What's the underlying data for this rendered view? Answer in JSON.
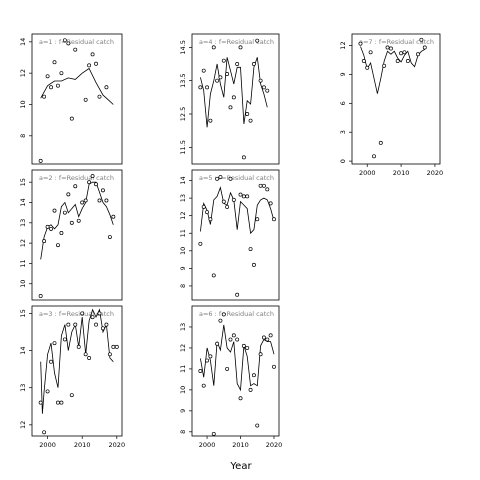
{
  "chart_data": {
    "type": "scatter",
    "xlabel": "Year",
    "x_ticks": [
      2000,
      2010,
      2020
    ],
    "xlim": [
      1995.5,
      2021.5
    ],
    "panels": [
      {
        "label": "a=1",
        "title": "a=1 : f=Residual catch",
        "ylim": [
          6.2,
          14.5
        ],
        "yticks": [
          8,
          10,
          12,
          14
        ],
        "points": [
          [
            1998,
            6.4
          ],
          [
            1999,
            10.5
          ],
          [
            2000,
            11.8
          ],
          [
            2001,
            11.1
          ],
          [
            2002,
            12.7
          ],
          [
            2003,
            11.2
          ],
          [
            2004,
            12.0
          ],
          [
            2005,
            14.1
          ],
          [
            2006,
            13.9
          ],
          [
            2007,
            9.1
          ],
          [
            2008,
            13.5
          ],
          [
            2011,
            10.3
          ],
          [
            2012,
            12.5
          ],
          [
            2013,
            13.2
          ],
          [
            2014,
            12.6
          ],
          [
            2015,
            10.5
          ],
          [
            2017,
            11.1
          ]
        ],
        "fit": [
          [
            1998,
            10.4
          ],
          [
            2000,
            11.2
          ],
          [
            2002,
            11.5
          ],
          [
            2004,
            11.5
          ],
          [
            2006,
            11.7
          ],
          [
            2008,
            11.6
          ],
          [
            2010,
            12.0
          ],
          [
            2012,
            12.3
          ],
          [
            2014,
            11.4
          ],
          [
            2016,
            10.6
          ],
          [
            2018,
            10.2
          ],
          [
            2019,
            10.0
          ]
        ]
      },
      {
        "label": "a=2",
        "title": "a=2 : f=Residual catch",
        "ylim": [
          9.2,
          15.6
        ],
        "yticks": [
          10,
          11,
          12,
          13,
          14,
          15
        ],
        "points": [
          [
            1998,
            9.4
          ],
          [
            1999,
            12.1
          ],
          [
            2000,
            12.8
          ],
          [
            2001,
            12.7
          ],
          [
            2002,
            13.6
          ],
          [
            2003,
            11.9
          ],
          [
            2004,
            12.5
          ],
          [
            2005,
            13.5
          ],
          [
            2006,
            14.4
          ],
          [
            2007,
            13.0
          ],
          [
            2008,
            14.8
          ],
          [
            2009,
            13.1
          ],
          [
            2010,
            14.0
          ],
          [
            2011,
            14.1
          ],
          [
            2012,
            15.0
          ],
          [
            2013,
            15.3
          ],
          [
            2014,
            14.9
          ],
          [
            2015,
            14.1
          ],
          [
            2016,
            14.6
          ],
          [
            2017,
            14.1
          ],
          [
            2018,
            12.3
          ],
          [
            2019,
            13.3
          ]
        ],
        "fit": [
          [
            1998,
            11.2
          ],
          [
            1999,
            12.3
          ],
          [
            2000,
            12.8
          ],
          [
            2001,
            12.9
          ],
          [
            2002,
            12.7
          ],
          [
            2003,
            12.9
          ],
          [
            2004,
            13.8
          ],
          [
            2005,
            14.0
          ],
          [
            2006,
            13.5
          ],
          [
            2007,
            13.7
          ],
          [
            2008,
            13.9
          ],
          [
            2009,
            13.3
          ],
          [
            2010,
            13.7
          ],
          [
            2011,
            14.0
          ],
          [
            2012,
            14.9
          ],
          [
            2013,
            15.0
          ],
          [
            2014,
            15.0
          ],
          [
            2015,
            14.5
          ],
          [
            2016,
            14.0
          ],
          [
            2017,
            13.8
          ],
          [
            2018,
            13.4
          ],
          [
            2019,
            12.9
          ]
        ]
      },
      {
        "label": "a=3",
        "title": "a=3 : f=Residual catch",
        "ylim": [
          11.7,
          15.2
        ],
        "yticks": [
          12.0,
          13.0,
          14.0,
          15.0
        ],
        "points": [
          [
            1998,
            12.6
          ],
          [
            1999,
            11.8
          ],
          [
            2000,
            12.9
          ],
          [
            2001,
            13.7
          ],
          [
            2002,
            14.2
          ],
          [
            2003,
            12.6
          ],
          [
            2004,
            12.6
          ],
          [
            2005,
            14.3
          ],
          [
            2006,
            14.7
          ],
          [
            2007,
            12.8
          ],
          [
            2008,
            14.7
          ],
          [
            2009,
            14.1
          ],
          [
            2010,
            15.0
          ],
          [
            2011,
            13.9
          ],
          [
            2012,
            13.8
          ],
          [
            2013,
            14.9
          ],
          [
            2014,
            14.7
          ],
          [
            2015,
            15.0
          ],
          [
            2016,
            14.6
          ],
          [
            2017,
            14.7
          ],
          [
            2018,
            13.9
          ],
          [
            2019,
            14.1
          ],
          [
            2020,
            14.1
          ]
        ],
        "fit": [
          [
            1998,
            13.7
          ],
          [
            1998.5,
            12.3
          ],
          [
            1999,
            12.9
          ],
          [
            2000,
            13.9
          ],
          [
            2001,
            14.2
          ],
          [
            2002,
            13.4
          ],
          [
            2003,
            13.0
          ],
          [
            2004,
            14.4
          ],
          [
            2005,
            14.7
          ],
          [
            2006,
            14.0
          ],
          [
            2007,
            14.5
          ],
          [
            2008,
            14.7
          ],
          [
            2009,
            14.1
          ],
          [
            2010,
            14.9
          ],
          [
            2011,
            13.9
          ],
          [
            2012,
            14.8
          ],
          [
            2013,
            15.1
          ],
          [
            2014,
            14.9
          ],
          [
            2015,
            15.1
          ],
          [
            2016,
            14.5
          ],
          [
            2017,
            14.7
          ],
          [
            2018,
            13.8
          ],
          [
            2019,
            13.7
          ]
        ]
      },
      {
        "label": "a=4",
        "title": "a=4 : f=Residual catch",
        "ylim": [
          11.0,
          14.9
        ],
        "yticks": [
          11.5,
          12.5,
          13.5,
          14.5
        ],
        "points": [
          [
            1998,
            13.3
          ],
          [
            1999,
            13.8
          ],
          [
            2000,
            13.3
          ],
          [
            2001,
            12.3
          ],
          [
            2002,
            14.5
          ],
          [
            2003,
            13.5
          ],
          [
            2004,
            13.6
          ],
          [
            2005,
            14.1
          ],
          [
            2006,
            13.7
          ],
          [
            2007,
            12.7
          ],
          [
            2008,
            13.0
          ],
          [
            2009,
            14.0
          ],
          [
            2010,
            14.5
          ],
          [
            2011,
            11.2
          ],
          [
            2012,
            12.5
          ],
          [
            2013,
            12.3
          ],
          [
            2014,
            14.0
          ],
          [
            2015,
            14.7
          ],
          [
            2016,
            13.5
          ],
          [
            2017,
            13.3
          ],
          [
            2018,
            13.2
          ]
        ],
        "fit": [
          [
            1998,
            13.6
          ],
          [
            1999,
            13.2
          ],
          [
            2000,
            12.1
          ],
          [
            2001,
            13.1
          ],
          [
            2002,
            13.5
          ],
          [
            2003,
            14.0
          ],
          [
            2004,
            13.4
          ],
          [
            2005,
            13.0
          ],
          [
            2006,
            14.2
          ],
          [
            2007,
            13.8
          ],
          [
            2008,
            13.4
          ],
          [
            2009,
            13.9
          ],
          [
            2010,
            13.9
          ],
          [
            2011,
            12.2
          ],
          [
            2012,
            12.9
          ],
          [
            2013,
            12.8
          ],
          [
            2014,
            13.9
          ],
          [
            2015,
            14.2
          ],
          [
            2016,
            13.4
          ],
          [
            2017,
            13.1
          ],
          [
            2018,
            12.7
          ]
        ]
      },
      {
        "label": "a=5",
        "title": "a=5 : f=Residual catch",
        "ylim": [
          7.2,
          14.6
        ],
        "yticks": [
          8,
          9,
          10,
          11,
          12,
          13,
          14
        ],
        "points": [
          [
            1998,
            10.4
          ],
          [
            1999,
            12.5
          ],
          [
            2000,
            12.2
          ],
          [
            2001,
            11.8
          ],
          [
            2002,
            8.6
          ],
          [
            2003,
            14.1
          ],
          [
            2004,
            14.2
          ],
          [
            2005,
            12.8
          ],
          [
            2006,
            12.5
          ],
          [
            2007,
            14.1
          ],
          [
            2008,
            12.9
          ],
          [
            2009,
            7.5
          ],
          [
            2010,
            13.2
          ],
          [
            2011,
            13.1
          ],
          [
            2012,
            13.1
          ],
          [
            2013,
            10.1
          ],
          [
            2014,
            9.2
          ],
          [
            2015,
            11.8
          ],
          [
            2016,
            13.7
          ],
          [
            2017,
            13.7
          ],
          [
            2018,
            13.5
          ],
          [
            2019,
            12.7
          ],
          [
            2020,
            11.8
          ]
        ],
        "fit": [
          [
            1998,
            11.1
          ],
          [
            1999,
            12.7
          ],
          [
            2000,
            12.3
          ],
          [
            2001,
            11.5
          ],
          [
            2002,
            12.9
          ],
          [
            2003,
            13.1
          ],
          [
            2004,
            13.6
          ],
          [
            2005,
            12.7
          ],
          [
            2006,
            12.6
          ],
          [
            2007,
            13.3
          ],
          [
            2008,
            12.9
          ],
          [
            2009,
            11.2
          ],
          [
            2010,
            12.8
          ],
          [
            2011,
            12.6
          ],
          [
            2012,
            12.4
          ],
          [
            2013,
            11.0
          ],
          [
            2014,
            11.2
          ],
          [
            2015,
            12.6
          ],
          [
            2016,
            12.9
          ],
          [
            2017,
            13.0
          ],
          [
            2018,
            12.9
          ],
          [
            2019,
            12.4
          ],
          [
            2020,
            11.7
          ]
        ]
      },
      {
        "label": "a=6",
        "title": "a=6 : f=Residual catch",
        "ylim": [
          7.8,
          14.0
        ],
        "yticks": [
          8,
          9,
          10,
          11,
          12,
          13
        ],
        "points": [
          [
            1998,
            10.9
          ],
          [
            1999,
            10.2
          ],
          [
            2000,
            11.4
          ],
          [
            2001,
            11.6
          ],
          [
            2002,
            7.9
          ],
          [
            2003,
            12.2
          ],
          [
            2004,
            13.3
          ],
          [
            2005,
            13.6
          ],
          [
            2006,
            11.0
          ],
          [
            2007,
            12.4
          ],
          [
            2008,
            12.6
          ],
          [
            2009,
            12.4
          ],
          [
            2010,
            9.6
          ],
          [
            2011,
            12.1
          ],
          [
            2012,
            12.0
          ],
          [
            2013,
            10.0
          ],
          [
            2014,
            10.7
          ],
          [
            2015,
            8.3
          ],
          [
            2016,
            11.7
          ],
          [
            2017,
            12.5
          ],
          [
            2018,
            12.4
          ],
          [
            2019,
            12.6
          ],
          [
            2020,
            11.1
          ]
        ],
        "fit": [
          [
            1998,
            11.5
          ],
          [
            1999,
            10.6
          ],
          [
            2000,
            12.0
          ],
          [
            2001,
            11.4
          ],
          [
            2002,
            10.2
          ],
          [
            2003,
            12.3
          ],
          [
            2004,
            11.9
          ],
          [
            2005,
            13.1
          ],
          [
            2006,
            12.0
          ],
          [
            2007,
            11.8
          ],
          [
            2008,
            12.3
          ],
          [
            2009,
            10.3
          ],
          [
            2010,
            10.0
          ],
          [
            2011,
            12.1
          ],
          [
            2012,
            11.6
          ],
          [
            2013,
            10.2
          ],
          [
            2014,
            10.3
          ],
          [
            2015,
            10.2
          ],
          [
            2016,
            12.1
          ],
          [
            2017,
            12.4
          ],
          [
            2018,
            12.3
          ],
          [
            2019,
            12.3
          ],
          [
            2020,
            11.7
          ]
        ]
      },
      {
        "label": "a=7",
        "title": "a=7 : f=Residual catch",
        "ylim": [
          -0.3,
          13.2
        ],
        "yticks": [
          0,
          3,
          6,
          9,
          12
        ],
        "points": [
          [
            1998,
            12.2
          ],
          [
            1999,
            10.4
          ],
          [
            2000,
            9.7
          ],
          [
            2001,
            11.3
          ],
          [
            2002,
            0.5
          ],
          [
            2004,
            1.9
          ],
          [
            2005,
            9.9
          ],
          [
            2006,
            11.8
          ],
          [
            2007,
            11.7
          ],
          [
            2009,
            10.4
          ],
          [
            2010,
            11.2
          ],
          [
            2011,
            11.3
          ],
          [
            2012,
            10.4
          ],
          [
            2015,
            11.1
          ],
          [
            2016,
            12.6
          ],
          [
            2017,
            11.8
          ]
        ],
        "fit": [
          [
            1998,
            11.9
          ],
          [
            1999,
            11.0
          ],
          [
            2000,
            9.6
          ],
          [
            2001,
            10.2
          ],
          [
            2002,
            8.6
          ],
          [
            2003,
            7.0
          ],
          [
            2004,
            8.6
          ],
          [
            2005,
            10.4
          ],
          [
            2006,
            11.4
          ],
          [
            2007,
            11.1
          ],
          [
            2008,
            11.4
          ],
          [
            2009,
            10.7
          ],
          [
            2010,
            10.3
          ],
          [
            2011,
            11.0
          ],
          [
            2012,
            11.4
          ],
          [
            2013,
            10.2
          ],
          [
            2014,
            9.8
          ],
          [
            2015,
            11.0
          ],
          [
            2016,
            11.4
          ],
          [
            2017,
            11.6
          ]
        ]
      }
    ]
  }
}
